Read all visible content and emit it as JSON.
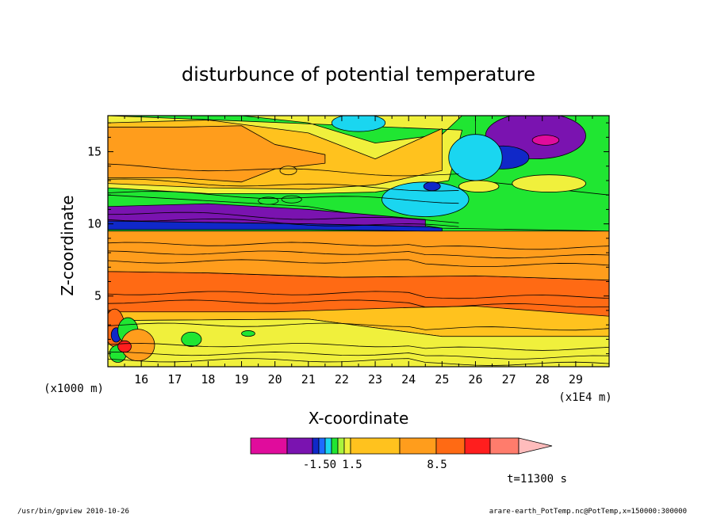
{
  "chart_data": {
    "type": "heatmap",
    "title": "disturbunce of potential temperature",
    "xlabel": "X-coordinate",
    "ylabel": "Z-coordinate",
    "x_unit_label": "(x1E4 m)",
    "z_unit_label": "(x1000 m)",
    "x_ticks": [
      16,
      17,
      18,
      19,
      20,
      21,
      22,
      23,
      24,
      25,
      26,
      27,
      28,
      29
    ],
    "y_ticks": [
      5,
      10,
      15
    ],
    "xlim": [
      15,
      30
    ],
    "ylim": [
      0.1,
      17.5
    ],
    "time_label": "t=11300 s",
    "colorbar": {
      "colors": [
        "#e00c9c",
        "#7a13b0",
        "#1028c8",
        "#1e6cff",
        "#1ad6f0",
        "#20e632",
        "#a9f43c",
        "#f0f03c",
        "#ffc21e",
        "#ff9d1c",
        "#ff6a14",
        "#ff1e1e",
        "#ff7c6c",
        "#ffbcbc"
      ],
      "tick_labels": [
        "-1.50",
        "1.5",
        "8.5"
      ],
      "tick_after_index": [
        3,
        8,
        11
      ]
    },
    "layers": [
      {
        "color": "#ffc21e",
        "top": [
          [
            15,
            6.2
          ],
          [
            30,
            6.2
          ]
        ],
        "bottom": [
          [
            15,
            3.3
          ],
          [
            21,
            3.4
          ],
          [
            25,
            2.2
          ],
          [
            30,
            2.2
          ]
        ]
      },
      {
        "color": "#ff6a14",
        "top": [
          [
            15,
            6.7
          ],
          [
            18,
            6.6
          ],
          [
            22,
            6.3
          ],
          [
            26,
            6.4
          ],
          [
            30,
            6.1
          ]
        ],
        "bottom": [
          [
            15,
            3.9
          ],
          [
            20,
            3.9
          ],
          [
            24,
            4.2
          ],
          [
            26,
            4.3
          ],
          [
            30,
            3.6
          ]
        ]
      },
      {
        "color": "#ff9d1c",
        "top": [
          [
            15,
            9.5
          ],
          [
            30,
            9.5
          ]
        ],
        "bottom": [
          [
            15,
            6.7
          ],
          [
            18,
            6.6
          ],
          [
            22,
            6.3
          ],
          [
            26,
            6.4
          ],
          [
            30,
            6.1
          ]
        ]
      },
      {
        "color": "#20e632",
        "top": [
          [
            15,
            17.5
          ],
          [
            26,
            17.5
          ],
          [
            26,
            13
          ],
          [
            30,
            12
          ]
        ],
        "bottom": [
          [
            15,
            12
          ],
          [
            21,
            11.2
          ],
          [
            25,
            9.7
          ],
          [
            30,
            9.5
          ]
        ]
      },
      {
        "color": "#f0f03c",
        "top": [
          [
            15,
            17.5
          ],
          [
            17,
            17.5
          ],
          [
            19,
            17.5
          ],
          [
            21,
            17.0
          ],
          [
            23,
            15.6
          ],
          [
            25,
            16.2
          ],
          [
            25.6,
            17.5
          ],
          [
            15,
            17.5
          ]
        ],
        "bottom": [
          [
            15,
            12.5
          ],
          [
            18,
            12.1
          ],
          [
            21,
            12.1
          ],
          [
            23,
            12.2
          ],
          [
            25.2,
            13.0
          ],
          [
            25.6,
            16.5
          ]
        ]
      },
      {
        "color": "#ffc21e",
        "top": [
          [
            15,
            17
          ],
          [
            18,
            17.2
          ],
          [
            21,
            16.3
          ],
          [
            23,
            14.5
          ],
          [
            25,
            16.6
          ]
        ],
        "bottom": [
          [
            15,
            12.8
          ],
          [
            18,
            12.5
          ],
          [
            21,
            12.4
          ],
          [
            23,
            12.7
          ],
          [
            25,
            13.7
          ]
        ]
      },
      {
        "color": "#ff9d1c",
        "top": [
          [
            15,
            16.7
          ],
          [
            17,
            16.7
          ],
          [
            19,
            16.8
          ],
          [
            20,
            15.5
          ],
          [
            21.5,
            14.8
          ]
        ],
        "bottom": [
          [
            15,
            13.2
          ],
          [
            17,
            13.2
          ],
          [
            19,
            12.9
          ],
          [
            20,
            13.8
          ],
          [
            21.5,
            14.2
          ]
        ]
      },
      {
        "color": "#7a13b0",
        "top": [
          [
            15,
            11.2
          ],
          [
            18,
            11.4
          ],
          [
            21,
            11.0
          ],
          [
            23,
            10.6
          ],
          [
            24.5,
            10.3
          ]
        ],
        "bottom": [
          [
            15,
            9.9
          ],
          [
            18,
            10.1
          ],
          [
            21,
            10.0
          ],
          [
            23,
            9.9
          ],
          [
            24.5,
            9.8
          ]
        ]
      },
      {
        "color": "#1028c8",
        "top": [
          [
            15,
            10.2
          ],
          [
            21,
            10.0
          ],
          [
            24.5,
            9.8
          ],
          [
            25,
            9.7
          ]
        ],
        "bottom": [
          [
            15,
            9.6
          ],
          [
            21,
            9.6
          ],
          [
            24.5,
            9.5
          ],
          [
            25,
            9.5
          ]
        ]
      },
      {
        "color": "#f0f03c",
        "top": [
          [
            15,
            3.3
          ],
          [
            21,
            3.4
          ],
          [
            25,
            2.2
          ],
          [
            30,
            2.2
          ]
        ],
        "bottom": [
          [
            15,
            0.1
          ],
          [
            30,
            0.1
          ]
        ]
      },
      {
        "color": "#20e632",
        "top": [
          [
            15,
            0.1
          ],
          [
            30,
            0.1
          ]
        ],
        "bottom": [
          [
            15,
            0.1
          ],
          [
            30,
            0.1
          ]
        ]
      }
    ],
    "patches": [
      {
        "color": "#7a13b0",
        "cx": 27.8,
        "cy": 16.1,
        "rx": 1.5,
        "ry": 1.6
      },
      {
        "color": "#e00c9c",
        "cx": 28.1,
        "cy": 15.8,
        "rx": 0.4,
        "ry": 0.35
      },
      {
        "color": "#1028c8",
        "cx": 26.8,
        "cy": 14.6,
        "rx": 0.8,
        "ry": 0.8
      },
      {
        "color": "#1ad6f0",
        "cx": 26.0,
        "cy": 14.6,
        "rx": 0.8,
        "ry": 1.6
      },
      {
        "color": "#1ad6f0",
        "cx": 22.5,
        "cy": 17.0,
        "rx": 0.8,
        "ry": 0.6
      },
      {
        "color": "#1ad6f0",
        "cx": 24.5,
        "cy": 11.7,
        "rx": 1.3,
        "ry": 1.2
      },
      {
        "color": "#1028c8",
        "cx": 24.7,
        "cy": 12.6,
        "rx": 0.25,
        "ry": 0.3
      },
      {
        "color": "#f0f03c",
        "cx": 26.1,
        "cy": 12.6,
        "rx": 0.6,
        "ry": 0.4
      },
      {
        "color": "#f0f03c",
        "cx": 28.2,
        "cy": 12.8,
        "rx": 1.1,
        "ry": 0.6
      },
      {
        "color": "#20e632",
        "cx": 19.8,
        "cy": 11.6,
        "rx": 0.3,
        "ry": 0.25
      },
      {
        "color": "#20e632",
        "cx": 20.5,
        "cy": 11.7,
        "rx": 0.3,
        "ry": 0.25
      },
      {
        "color": "#ffc21e",
        "cx": 20.4,
        "cy": 13.7,
        "rx": 0.25,
        "ry": 0.3
      },
      {
        "color": "#ff6a14",
        "cx": 15.2,
        "cy": 2.8,
        "rx": 0.3,
        "ry": 1.3
      },
      {
        "color": "#1028c8",
        "cx": 15.25,
        "cy": 2.3,
        "rx": 0.15,
        "ry": 0.5
      },
      {
        "color": "#20e632",
        "cx": 15.6,
        "cy": 2.6,
        "rx": 0.3,
        "ry": 0.9
      },
      {
        "color": "#20e632",
        "cx": 15.3,
        "cy": 1.0,
        "rx": 0.25,
        "ry": 0.6
      },
      {
        "color": "#20e632",
        "cx": 17.5,
        "cy": 2.0,
        "rx": 0.3,
        "ry": 0.5
      },
      {
        "color": "#20e632",
        "cx": 19.2,
        "cy": 2.4,
        "rx": 0.2,
        "ry": 0.2
      },
      {
        "color": "#ff9d1c",
        "cx": 15.9,
        "cy": 1.6,
        "rx": 0.5,
        "ry": 1.1
      },
      {
        "color": "#ff1e1e",
        "cx": 15.5,
        "cy": 1.5,
        "rx": 0.2,
        "ry": 0.4
      }
    ]
  },
  "footer": {
    "left": "/usr/bin/gpview   2010-10-26",
    "right": "arare-earth_PotTemp.nc@PotTemp,x=150000:300000"
  }
}
